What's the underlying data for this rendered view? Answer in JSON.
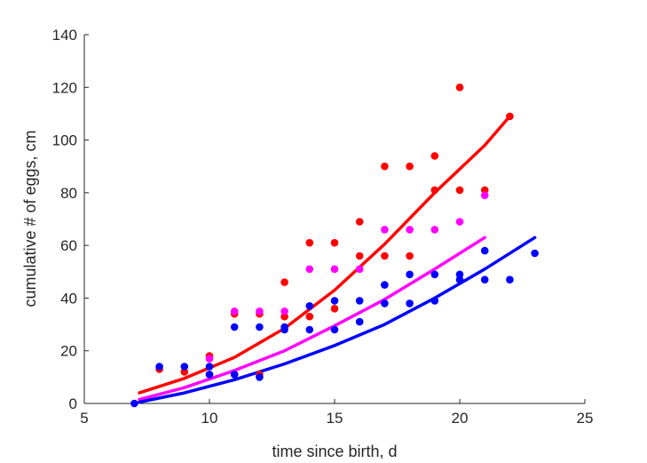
{
  "chart_data": {
    "type": "scatter",
    "xlabel": "time since birth, d",
    "ylabel": "cumulative # of eggs, cm",
    "xlim": [
      5,
      25
    ],
    "ylim": [
      0,
      140
    ],
    "xticks": [
      "5",
      "10",
      "15",
      "20",
      "25"
    ],
    "yticks": [
      "0",
      "20",
      "40",
      "60",
      "80",
      "100",
      "120",
      "140"
    ],
    "grid": false,
    "series": [
      {
        "color": "#ff0000",
        "points": [
          [
            8,
            13
          ],
          [
            9,
            12
          ],
          [
            10,
            18
          ],
          [
            10,
            11
          ],
          [
            11,
            34
          ],
          [
            11,
            11
          ],
          [
            12,
            34
          ],
          [
            12,
            11
          ],
          [
            13,
            46
          ],
          [
            13,
            33
          ],
          [
            14,
            61
          ],
          [
            14,
            33
          ],
          [
            15,
            61
          ],
          [
            15,
            36
          ],
          [
            16,
            69
          ],
          [
            16,
            56
          ],
          [
            17,
            90
          ],
          [
            17,
            56
          ],
          [
            18,
            90
          ],
          [
            18,
            56
          ],
          [
            19,
            94
          ],
          [
            19,
            81
          ],
          [
            20,
            120
          ],
          [
            20,
            81
          ],
          [
            21,
            81
          ],
          [
            22,
            109
          ]
        ],
        "fit": [
          [
            7.2,
            4
          ],
          [
            9,
            9.5
          ],
          [
            11,
            17.5
          ],
          [
            13,
            28.5
          ],
          [
            15,
            43
          ],
          [
            17,
            60.5
          ],
          [
            19,
            80
          ],
          [
            21,
            98
          ],
          [
            22,
            109
          ]
        ]
      },
      {
        "color": "#ff00ff",
        "points": [
          [
            10,
            17
          ],
          [
            11,
            35
          ],
          [
            12,
            35
          ],
          [
            13,
            35
          ],
          [
            14,
            51
          ],
          [
            15,
            51
          ],
          [
            16,
            51
          ],
          [
            17,
            66
          ],
          [
            18,
            66
          ],
          [
            19,
            66
          ],
          [
            20,
            69
          ],
          [
            21,
            79
          ]
        ],
        "fit": [
          [
            7.2,
            1.5
          ],
          [
            9,
            6
          ],
          [
            11,
            12.5
          ],
          [
            13,
            20
          ],
          [
            15,
            29.5
          ],
          [
            17,
            39.5
          ],
          [
            19,
            51
          ],
          [
            21,
            63
          ]
        ]
      },
      {
        "color": "#0000ff",
        "points": [
          [
            7,
            0
          ],
          [
            8,
            14
          ],
          [
            9,
            14
          ],
          [
            10,
            14
          ],
          [
            10,
            11
          ],
          [
            11,
            29
          ],
          [
            11,
            11
          ],
          [
            12,
            29
          ],
          [
            12,
            10
          ],
          [
            13,
            29
          ],
          [
            13,
            28
          ],
          [
            14,
            37
          ],
          [
            14,
            28
          ],
          [
            15,
            39
          ],
          [
            15,
            28
          ],
          [
            16,
            39
          ],
          [
            16,
            31
          ],
          [
            17,
            45
          ],
          [
            17,
            38
          ],
          [
            18,
            49
          ],
          [
            18,
            38
          ],
          [
            19,
            49
          ],
          [
            19,
            39
          ],
          [
            20,
            49
          ],
          [
            20,
            47
          ],
          [
            21,
            58
          ],
          [
            21,
            47
          ],
          [
            22,
            47
          ],
          [
            23,
            57
          ]
        ],
        "fit": [
          [
            7.2,
            0.5
          ],
          [
            9,
            4
          ],
          [
            11,
            9
          ],
          [
            13,
            15
          ],
          [
            15,
            22
          ],
          [
            17,
            30
          ],
          [
            19,
            40
          ],
          [
            21,
            51
          ],
          [
            23,
            63
          ]
        ]
      }
    ]
  }
}
